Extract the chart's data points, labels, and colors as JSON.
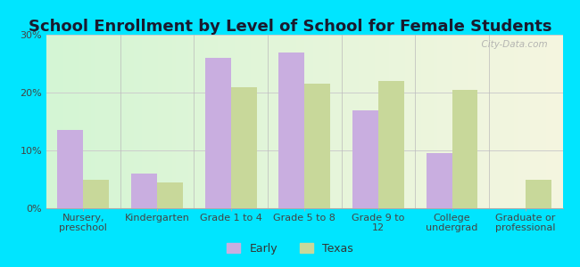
{
  "title": "School Enrollment by Level of School for Female Students",
  "categories": [
    "Nursery,\npreschool",
    "Kindergarten",
    "Grade 1 to 4",
    "Grade 5 to 8",
    "Grade 9 to\n12",
    "College\nundergrad",
    "Graduate or\nprofessional"
  ],
  "early_values": [
    13.5,
    6.0,
    26.0,
    27.0,
    17.0,
    9.5,
    0
  ],
  "texas_values": [
    5.0,
    4.5,
    21.0,
    21.5,
    22.0,
    20.5,
    5.0
  ],
  "early_color": "#c9aee0",
  "texas_color": "#c8d89a",
  "background_color": "#00e5ff",
  "ylim": [
    0,
    30
  ],
  "yticks": [
    0,
    10,
    20,
    30
  ],
  "yticklabels": [
    "0%",
    "10%",
    "20%",
    "30%"
  ],
  "legend_labels": [
    "Early",
    "Texas"
  ],
  "bar_width": 0.35,
  "watermark": "  City-Data.com",
  "title_fontsize": 13,
  "tick_fontsize": 8,
  "legend_fontsize": 9
}
